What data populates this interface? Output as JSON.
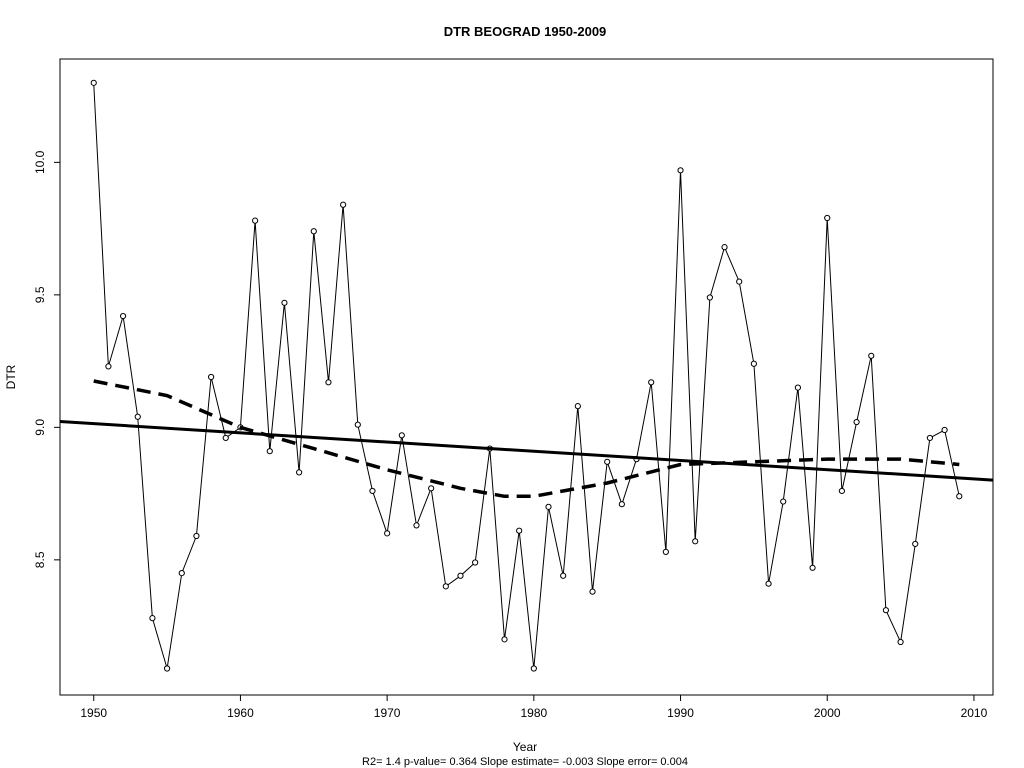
{
  "chart_data": {
    "type": "line",
    "title": "DTR   BEOGRAD 1950-2009",
    "xlabel": "Year",
    "ylabel": "DTR",
    "subtitle": "R2= 1.4  p-value= 0.364  Slope estimate= -0.003  Slope error= 0.004",
    "xlim": [
      1947.7,
      2011.3
    ],
    "ylim": [
      7.99,
      10.39
    ],
    "x_ticks": [
      1950,
      1960,
      1970,
      1980,
      1990,
      2000,
      2010
    ],
    "y_ticks": [
      8.5,
      9.0,
      9.5,
      10.0
    ],
    "x_tick_labels": [
      "1950",
      "1960",
      "1970",
      "1980",
      "1990",
      "2000",
      "2010"
    ],
    "y_tick_labels": [
      "8.5",
      "9.0",
      "9.5",
      "10.0"
    ],
    "grid": false,
    "x": [
      1950,
      1951,
      1952,
      1953,
      1954,
      1955,
      1956,
      1957,
      1958,
      1959,
      1960,
      1961,
      1962,
      1963,
      1964,
      1965,
      1966,
      1967,
      1968,
      1969,
      1970,
      1971,
      1972,
      1973,
      1974,
      1975,
      1976,
      1977,
      1978,
      1979,
      1980,
      1981,
      1982,
      1983,
      1984,
      1985,
      1986,
      1987,
      1988,
      1989,
      1990,
      1991,
      1992,
      1993,
      1994,
      1995,
      1996,
      1997,
      1998,
      1999,
      2000,
      2001,
      2002,
      2003,
      2004,
      2005,
      2006,
      2007,
      2008,
      2009
    ],
    "series": [
      {
        "style": "line-with-points",
        "values": [
          10.3,
          9.23,
          9.42,
          9.04,
          8.28,
          8.09,
          8.45,
          8.59,
          9.19,
          8.96,
          9.0,
          9.78,
          8.91,
          9.47,
          8.83,
          9.74,
          9.17,
          9.84,
          9.01,
          8.76,
          8.6,
          8.97,
          8.63,
          8.77,
          8.4,
          8.44,
          8.49,
          8.92,
          8.2,
          8.61,
          8.09,
          8.7,
          8.44,
          9.08,
          8.38,
          8.87,
          8.71,
          8.88,
          9.17,
          8.53,
          9.97,
          8.57,
          9.49,
          9.68,
          9.55,
          9.24,
          8.41,
          8.72,
          9.15,
          8.47,
          9.79,
          8.76,
          9.02,
          9.27,
          8.31,
          8.19,
          8.56,
          8.96,
          8.99,
          8.74
        ]
      },
      {
        "style": "solid-trend",
        "x": [
          1947.7,
          2011.3
        ],
        "values": [
          9.022,
          8.801
        ]
      },
      {
        "style": "dashed-smooth",
        "x": [
          1950,
          1955,
          1960,
          1965,
          1970,
          1975,
          1978,
          1980,
          1985,
          1990,
          1995,
          2000,
          2005,
          2009
        ],
        "values": [
          9.175,
          9.12,
          9.0,
          8.92,
          8.84,
          8.77,
          8.74,
          8.74,
          8.79,
          8.86,
          8.87,
          8.88,
          8.88,
          8.86
        ]
      }
    ]
  }
}
